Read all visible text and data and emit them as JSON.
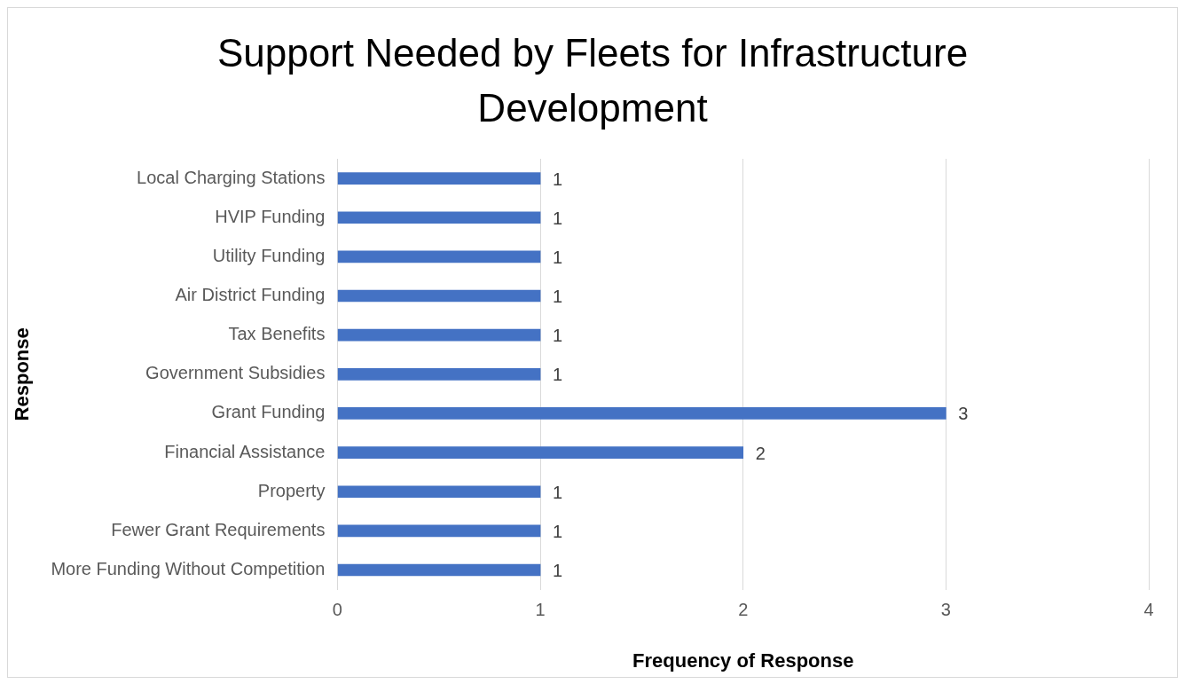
{
  "chart_data": {
    "type": "bar",
    "orientation": "horizontal",
    "title": "Support Needed by Fleets for Infrastructure Development",
    "xlabel": "Frequency of Response",
    "ylabel": "Response",
    "categories": [
      "Local Charging Stations",
      "HVIP Funding",
      "Utility Funding",
      "Air District Funding",
      "Tax Benefits",
      "Government Subsidies",
      "Grant Funding",
      "Financial Assistance",
      "Property",
      "Fewer Grant Requirements",
      "More Funding Without Competition"
    ],
    "values": [
      1,
      1,
      1,
      1,
      1,
      1,
      3,
      2,
      1,
      1,
      1
    ],
    "color": "#4472c4",
    "xlim": [
      0,
      4
    ],
    "xticks": [
      0,
      1,
      2,
      3,
      4
    ],
    "grid": "x",
    "legend": false,
    "data_labels": true
  }
}
